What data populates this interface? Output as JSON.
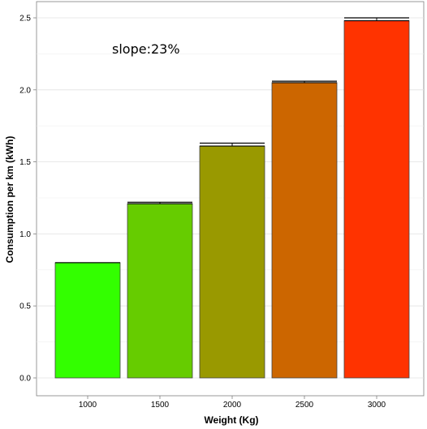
{
  "chart_data": {
    "type": "bar",
    "categories": [
      "1000",
      "1500",
      "2000",
      "2500",
      "3000"
    ],
    "values": [
      0.8,
      1.21,
      1.61,
      2.05,
      2.48
    ],
    "error_upper": [
      0.8,
      1.22,
      1.63,
      2.06,
      2.5
    ],
    "xlabel": "Weight (Kg)",
    "ylabel": "Consumption per km (kWh)",
    "ylim": [
      0,
      2.5
    ],
    "yticks": [
      0.0,
      0.5,
      1.0,
      1.5,
      2.0,
      2.5
    ],
    "ytick_labels": [
      "0.0",
      "0.5",
      "1.0",
      "1.5",
      "2.0",
      "2.5"
    ],
    "annotation": "slope:23%",
    "bar_colors": [
      "#33ff00",
      "#66cc00",
      "#999900",
      "#cc6600",
      "#ff3300"
    ],
    "grid": true,
    "legend": "none"
  }
}
